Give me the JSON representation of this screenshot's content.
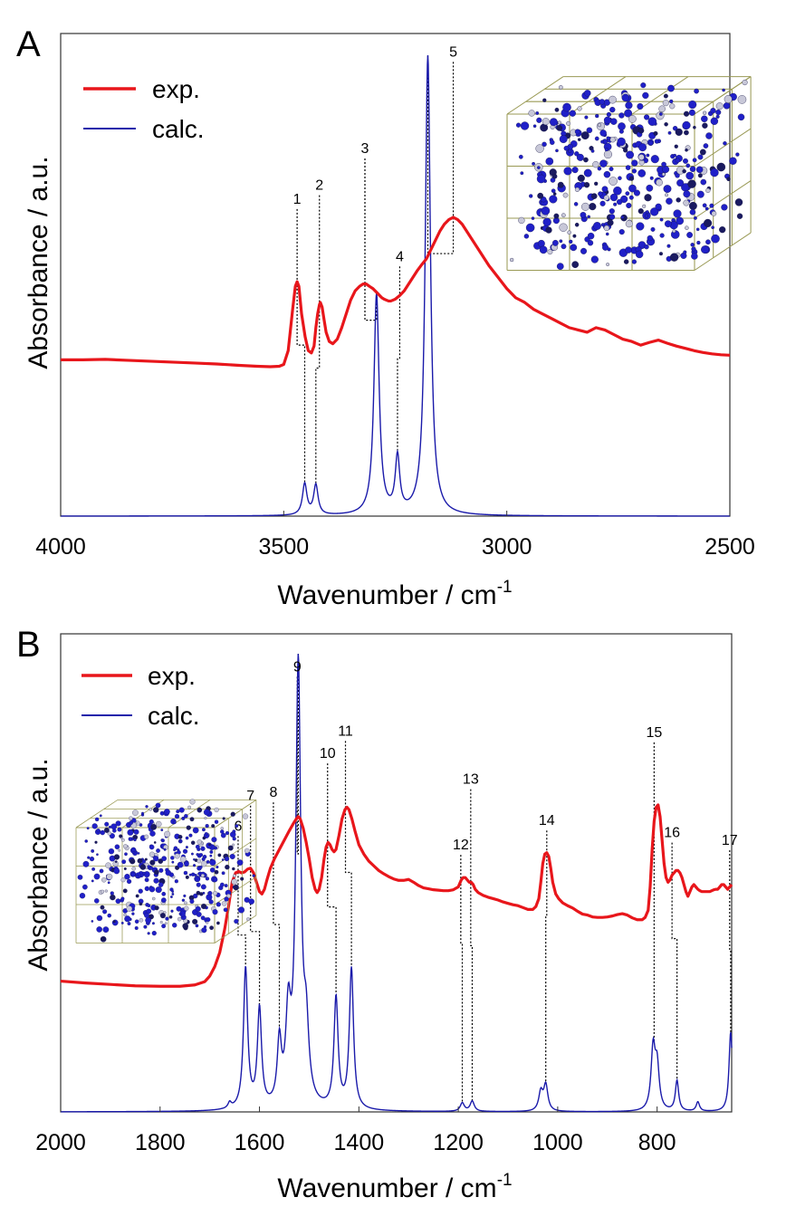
{
  "chart_data": [
    {
      "panel": "A",
      "type": "line",
      "xlabel": "Wavenumber / cm",
      "xlabel_sup": "-1",
      "ylabel": "Absorbance / a.u.",
      "xlim": [
        4000,
        2500
      ],
      "x_reversed": true,
      "ylim": [
        0,
        1.05
      ],
      "xticks": [
        4000,
        3500,
        3000,
        2500
      ],
      "legend": {
        "placement": "top-left",
        "entries": [
          "exp.",
          "calc."
        ]
      },
      "series": [
        {
          "name": "exp.",
          "color": "#e8161b",
          "x": [
            4000,
            3950,
            3900,
            3850,
            3800,
            3750,
            3700,
            3650,
            3600,
            3560,
            3530,
            3510,
            3500,
            3490,
            3480,
            3474,
            3470,
            3466,
            3460,
            3452,
            3445,
            3438,
            3432,
            3428,
            3424,
            3420,
            3418,
            3414,
            3410,
            3405,
            3398,
            3390,
            3380,
            3370,
            3360,
            3350,
            3340,
            3330,
            3322,
            3315,
            3308,
            3300,
            3295,
            3290,
            3285,
            3280,
            3275,
            3270,
            3265,
            3260,
            3255,
            3250,
            3245,
            3240,
            3230,
            3220,
            3210,
            3200,
            3190,
            3180,
            3170,
            3160,
            3150,
            3140,
            3130,
            3120,
            3110,
            3100,
            3090,
            3080,
            3070,
            3060,
            3050,
            3040,
            3020,
            3000,
            2980,
            2960,
            2940,
            2920,
            2900,
            2880,
            2860,
            2840,
            2820,
            2800,
            2780,
            2760,
            2740,
            2720,
            2700,
            2680,
            2660,
            2640,
            2620,
            2600,
            2580,
            2560,
            2540,
            2520,
            2500
          ],
          "y": [
            0.34,
            0.34,
            0.341,
            0.339,
            0.337,
            0.335,
            0.333,
            0.331,
            0.328,
            0.326,
            0.325,
            0.326,
            0.33,
            0.36,
            0.45,
            0.5,
            0.51,
            0.5,
            0.44,
            0.39,
            0.36,
            0.355,
            0.37,
            0.41,
            0.44,
            0.46,
            0.465,
            0.455,
            0.43,
            0.4,
            0.38,
            0.375,
            0.385,
            0.41,
            0.44,
            0.47,
            0.49,
            0.5,
            0.505,
            0.505,
            0.5,
            0.495,
            0.49,
            0.485,
            0.48,
            0.475,
            0.472,
            0.47,
            0.468,
            0.468,
            0.47,
            0.472,
            0.476,
            0.48,
            0.49,
            0.505,
            0.52,
            0.535,
            0.548,
            0.56,
            0.58,
            0.6,
            0.62,
            0.635,
            0.645,
            0.65,
            0.645,
            0.635,
            0.62,
            0.605,
            0.59,
            0.575,
            0.56,
            0.545,
            0.52,
            0.495,
            0.475,
            0.465,
            0.45,
            0.44,
            0.43,
            0.42,
            0.41,
            0.405,
            0.4,
            0.41,
            0.405,
            0.395,
            0.385,
            0.38,
            0.372,
            0.378,
            0.383,
            0.376,
            0.37,
            0.365,
            0.36,
            0.356,
            0.353,
            0.351,
            0.35
          ]
        },
        {
          "name": "calc.",
          "color": "#1a1aaa",
          "peaks": [
            {
              "center": 3453,
              "height": 0.068,
              "width": 6
            },
            {
              "center": 3428,
              "height": 0.065,
              "width": 6
            },
            {
              "center": 3292,
              "height": 0.48,
              "width": 7
            },
            {
              "center": 3245,
              "height": 0.12,
              "width": 6
            },
            {
              "center": 3177,
              "height": 1.0,
              "width": 7
            }
          ]
        }
      ],
      "annotations": [
        {
          "label": "1",
          "x_exp": 3470,
          "x_calc": 3453,
          "y_label": 0.68
        },
        {
          "label": "2",
          "x_exp": 3420,
          "x_calc": 3428,
          "y_label": 0.71
        },
        {
          "label": "3",
          "x_exp": 3318,
          "x_calc": 3292,
          "y_label": 0.79
        },
        {
          "label": "4",
          "x_exp": 3240,
          "x_calc": 3245,
          "y_label": 0.555
        },
        {
          "label": "5",
          "x_exp": 3120,
          "x_calc": 3177,
          "y_label": 1.0
        }
      ]
    },
    {
      "panel": "B",
      "type": "line",
      "xlabel": "Wavenumber / cm",
      "xlabel_sup": "-1",
      "ylabel": "Absorbance / a.u.",
      "xlim": [
        2000,
        650
      ],
      "x_reversed": true,
      "ylim": [
        0,
        1.02
      ],
      "xticks": [
        2000,
        1800,
        1600,
        1400,
        1200,
        1000,
        800
      ],
      "legend": {
        "placement": "top-left",
        "entries": [
          "exp.",
          "calc."
        ]
      },
      "series": [
        {
          "name": "exp.",
          "color": "#e8161b",
          "x": [
            2000,
            1950,
            1900,
            1850,
            1800,
            1760,
            1730,
            1710,
            1700,
            1690,
            1680,
            1670,
            1662,
            1655,
            1648,
            1642,
            1636,
            1630,
            1624,
            1618,
            1612,
            1606,
            1600,
            1595,
            1590,
            1585,
            1578,
            1570,
            1560,
            1550,
            1540,
            1532,
            1526,
            1522,
            1518,
            1512,
            1506,
            1500,
            1494,
            1488,
            1484,
            1480,
            1475,
            1470,
            1466,
            1462,
            1458,
            1454,
            1450,
            1446,
            1440,
            1434,
            1428,
            1424,
            1420,
            1414,
            1408,
            1400,
            1390,
            1380,
            1370,
            1360,
            1350,
            1340,
            1330,
            1320,
            1310,
            1300,
            1290,
            1280,
            1270,
            1260,
            1250,
            1240,
            1230,
            1220,
            1210,
            1200,
            1194,
            1190,
            1186,
            1182,
            1178,
            1174,
            1170,
            1166,
            1160,
            1150,
            1140,
            1130,
            1120,
            1110,
            1100,
            1090,
            1080,
            1070,
            1060,
            1050,
            1044,
            1038,
            1034,
            1030,
            1026,
            1022,
            1018,
            1014,
            1010,
            1004,
            998,
            990,
            980,
            970,
            960,
            950,
            940,
            930,
            920,
            910,
            900,
            890,
            880,
            870,
            860,
            850,
            840,
            830,
            824,
            818,
            814,
            810,
            806,
            802,
            798,
            794,
            790,
            786,
            782,
            778,
            774,
            770,
            766,
            762,
            758,
            754,
            750,
            746,
            742,
            738,
            734,
            730,
            726,
            722,
            718,
            714,
            710,
            706,
            702,
            698,
            694,
            690,
            686,
            682,
            678,
            674,
            670,
            666,
            662,
            658,
            654,
            650
          ],
          "y": [
            0.279,
            0.275,
            0.272,
            0.269,
            0.268,
            0.268,
            0.271,
            0.278,
            0.29,
            0.31,
            0.34,
            0.39,
            0.44,
            0.49,
            0.51,
            0.513,
            0.51,
            0.512,
            0.518,
            0.52,
            0.51,
            0.49,
            0.47,
            0.465,
            0.475,
            0.495,
            0.52,
            0.54,
            0.56,
            0.58,
            0.6,
            0.615,
            0.625,
            0.63,
            0.625,
            0.605,
            0.575,
            0.54,
            0.5,
            0.475,
            0.468,
            0.475,
            0.5,
            0.54,
            0.565,
            0.575,
            0.57,
            0.56,
            0.555,
            0.56,
            0.59,
            0.625,
            0.645,
            0.65,
            0.645,
            0.625,
            0.6,
            0.57,
            0.55,
            0.535,
            0.525,
            0.515,
            0.508,
            0.502,
            0.497,
            0.494,
            0.494,
            0.496,
            0.49,
            0.483,
            0.478,
            0.476,
            0.474,
            0.473,
            0.472,
            0.472,
            0.474,
            0.48,
            0.495,
            0.5,
            0.5,
            0.495,
            0.49,
            0.49,
            0.485,
            0.475,
            0.468,
            0.462,
            0.458,
            0.455,
            0.452,
            0.448,
            0.445,
            0.442,
            0.44,
            0.436,
            0.432,
            0.432,
            0.438,
            0.455,
            0.49,
            0.53,
            0.55,
            0.553,
            0.545,
            0.52,
            0.49,
            0.465,
            0.455,
            0.446,
            0.44,
            0.435,
            0.428,
            0.422,
            0.42,
            0.416,
            0.415,
            0.415,
            0.416,
            0.418,
            0.421,
            0.423,
            0.42,
            0.414,
            0.41,
            0.41,
            0.415,
            0.43,
            0.48,
            0.56,
            0.62,
            0.65,
            0.655,
            0.63,
            0.58,
            0.53,
            0.5,
            0.49,
            0.495,
            0.505,
            0.51,
            0.515,
            0.515,
            0.51,
            0.5,
            0.485,
            0.47,
            0.46,
            0.47,
            0.48,
            0.485,
            0.48,
            0.475,
            0.472,
            0.47,
            0.47,
            0.47,
            0.47,
            0.47,
            0.472,
            0.474,
            0.475,
            0.475,
            0.48,
            0.485,
            0.485,
            0.48,
            0.475,
            0.48,
            0.485
          ]
        },
        {
          "name": "calc.",
          "color": "#1a1aaa",
          "peaks": [
            {
              "center": 1660,
              "height": 0.012,
              "width": 4
            },
            {
              "center": 1628,
              "height": 0.3,
              "width": 5
            },
            {
              "center": 1600,
              "height": 0.21,
              "width": 5
            },
            {
              "center": 1560,
              "height": 0.13,
              "width": 5
            },
            {
              "center": 1542,
              "height": 0.18,
              "width": 6
            },
            {
              "center": 1522,
              "height": 0.94,
              "width": 6
            },
            {
              "center": 1506,
              "height": 0.14,
              "width": 6
            },
            {
              "center": 1446,
              "height": 0.235,
              "width": 5
            },
            {
              "center": 1415,
              "height": 0.3,
              "width": 5
            },
            {
              "center": 1192,
              "height": 0.018,
              "width": 5
            },
            {
              "center": 1172,
              "height": 0.022,
              "width": 5
            },
            {
              "center": 1034,
              "height": 0.04,
              "width": 5
            },
            {
              "center": 1024,
              "height": 0.055,
              "width": 5
            },
            {
              "center": 808,
              "height": 0.13,
              "width": 5
            },
            {
              "center": 800,
              "height": 0.09,
              "width": 5
            },
            {
              "center": 760,
              "height": 0.065,
              "width": 4
            },
            {
              "center": 718,
              "height": 0.02,
              "width": 4
            },
            {
              "center": 652,
              "height": 0.17,
              "width": 4
            }
          ]
        }
      ],
      "annotations": [
        {
          "label": "6",
          "x_exp": 1643,
          "x_calc": 1628,
          "y_label": 0.6
        },
        {
          "label": "7",
          "x_exp": 1618,
          "x_calc": 1600,
          "y_label": 0.665
        },
        {
          "label": "8",
          "x_exp": 1572,
          "x_calc": 1560,
          "y_label": 0.672
        },
        {
          "label": "9",
          "x_exp": 1524,
          "x_calc": 1522,
          "y_label": 0.94
        },
        {
          "label": "10",
          "x_exp": 1463,
          "x_calc": 1446,
          "y_label": 0.755
        },
        {
          "label": "11",
          "x_exp": 1427,
          "x_calc": 1415,
          "y_label": 0.803
        },
        {
          "label": "12",
          "x_exp": 1195,
          "x_calc": 1192,
          "y_label": 0.56
        },
        {
          "label": "13",
          "x_exp": 1175,
          "x_calc": 1172,
          "y_label": 0.7
        },
        {
          "label": "14",
          "x_exp": 1022,
          "x_calc": 1024,
          "y_label": 0.612
        },
        {
          "label": "15",
          "x_exp": 806,
          "x_calc": 806,
          "y_label": 0.8
        },
        {
          "label": "16",
          "x_exp": 770,
          "x_calc": 760,
          "y_label": 0.586
        },
        {
          "label": "17",
          "x_exp": 654,
          "x_calc": 652,
          "y_label": 0.57
        }
      ]
    }
  ]
}
